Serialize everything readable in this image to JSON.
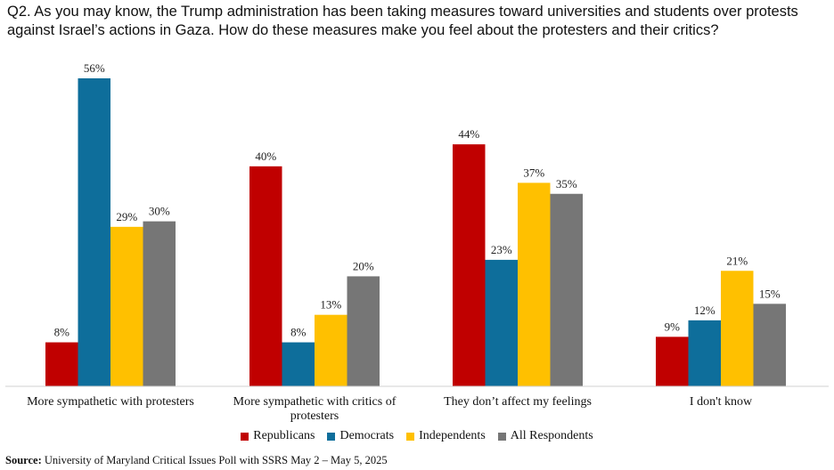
{
  "chart_data": {
    "type": "bar",
    "title": "Q2. As you may know, the Trump administration has been taking measures toward universities and students over protests against Israel’s actions in Gaza. How do these measures make you feel about the protesters and their critics?",
    "categories": [
      "More sympathetic with protesters",
      "More sympathetic with critics of protesters",
      "They don’t affect my feelings",
      "I don't know"
    ],
    "series": [
      {
        "name": "Republicans",
        "color": "#C00000",
        "values": [
          8,
          40,
          44,
          9
        ],
        "labels": [
          "8%",
          "40%",
          "44%",
          "9%"
        ]
      },
      {
        "name": "Democrats",
        "color": "#0E6E9B",
        "values": [
          56,
          8,
          23,
          12
        ],
        "labels": [
          "56%",
          "8%",
          "23%",
          "12%"
        ]
      },
      {
        "name": "Independents",
        "color": "#FFC000",
        "values": [
          29,
          13,
          37,
          21
        ],
        "labels": [
          "29%",
          "13%",
          "37%",
          "21%"
        ]
      },
      {
        "name": "All Respondents",
        "color": "#767676",
        "values": [
          30,
          20,
          35,
          15
        ],
        "labels": [
          "30%",
          "20%",
          "35%",
          "15%"
        ]
      }
    ],
    "ylim": [
      0,
      60
    ],
    "grid": false,
    "legend": "bottom"
  },
  "source": {
    "label": "Source:",
    "text": "University of Maryland Critical Issues Poll with SSRS May 2 – May 5, 2025"
  }
}
